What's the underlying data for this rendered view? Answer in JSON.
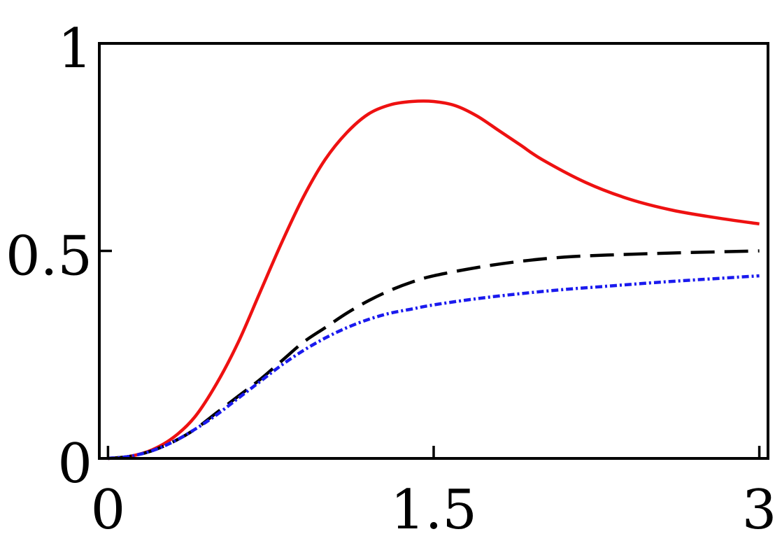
{
  "chart_data": {
    "type": "line",
    "title": "",
    "xlabel": "",
    "ylabel": "",
    "xlim": [
      -0.04,
      3.04
    ],
    "ylim": [
      0,
      1
    ],
    "grid": false,
    "legend": "none",
    "x_ticks": [
      {
        "value": 0,
        "label": "0"
      },
      {
        "value": 1.5,
        "label": "1.5"
      },
      {
        "value": 3,
        "label": "3"
      }
    ],
    "y_ticks": [
      {
        "value": 0,
        "label": "0"
      },
      {
        "value": 0.5,
        "label": "0.5"
      },
      {
        "value": 1,
        "label": "1"
      }
    ],
    "series": [
      {
        "color": "#ee1111",
        "style": "solid",
        "x": [
          0,
          0.1,
          0.2,
          0.3,
          0.4,
          0.5,
          0.6,
          0.7,
          0.8,
          0.9,
          1.0,
          1.1,
          1.2,
          1.3,
          1.4,
          1.5,
          1.6,
          1.7,
          1.8,
          1.9,
          2.0,
          2.2,
          2.4,
          2.6,
          2.8,
          3.0
        ],
        "y": [
          0,
          0.005,
          0.02,
          0.05,
          0.1,
          0.18,
          0.28,
          0.4,
          0.52,
          0.63,
          0.72,
          0.785,
          0.83,
          0.852,
          0.86,
          0.86,
          0.85,
          0.825,
          0.79,
          0.755,
          0.72,
          0.665,
          0.625,
          0.598,
          0.58,
          0.565
        ]
      },
      {
        "color": "#000000",
        "style": "dashed",
        "x": [
          0,
          0.1,
          0.2,
          0.3,
          0.4,
          0.5,
          0.6,
          0.7,
          0.8,
          0.9,
          1.0,
          1.1,
          1.2,
          1.3,
          1.4,
          1.5,
          1.7,
          1.9,
          2.1,
          2.3,
          2.6,
          3.0
        ],
        "y": [
          0,
          0.005,
          0.018,
          0.04,
          0.07,
          0.11,
          0.15,
          0.19,
          0.235,
          0.28,
          0.315,
          0.35,
          0.38,
          0.405,
          0.425,
          0.44,
          0.46,
          0.475,
          0.485,
          0.49,
          0.495,
          0.5
        ]
      },
      {
        "color": "#1a1aee",
        "style": "dash-dot",
        "x": [
          0,
          0.1,
          0.2,
          0.3,
          0.4,
          0.5,
          0.6,
          0.7,
          0.8,
          0.9,
          1.0,
          1.1,
          1.2,
          1.3,
          1.4,
          1.5,
          1.7,
          1.9,
          2.1,
          2.3,
          2.5,
          2.7,
          3.0
        ],
        "y": [
          0,
          0.005,
          0.018,
          0.04,
          0.07,
          0.105,
          0.145,
          0.185,
          0.225,
          0.26,
          0.29,
          0.315,
          0.335,
          0.35,
          0.36,
          0.37,
          0.385,
          0.397,
          0.407,
          0.415,
          0.423,
          0.43,
          0.44
        ]
      }
    ]
  }
}
